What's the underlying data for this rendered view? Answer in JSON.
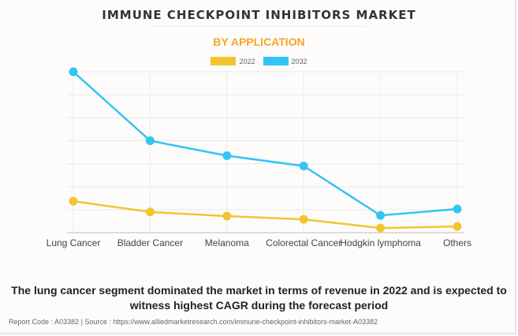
{
  "header": {
    "title": "IMMUNE CHECKPOINT INHIBITORS MARKET",
    "subtitle": "BY APPLICATION"
  },
  "chart_data": {
    "type": "line",
    "title": "IMMUNE CHECKPOINT INHIBITORS MARKET",
    "subtitle": "BY APPLICATION",
    "xlabel": "",
    "ylabel": "",
    "categories": [
      "Lung Cancer",
      "Bladder Cancer",
      "Melanoma",
      "Colorectal Cancer",
      "Hodgkin lymphoma",
      "Others"
    ],
    "series": [
      {
        "name": "2022",
        "color": "#f4c430",
        "values": [
          1.37,
          0.9,
          0.72,
          0.58,
          0.2,
          0.27
        ]
      },
      {
        "name": "2032",
        "color": "#33c4f5",
        "values": [
          7.0,
          4.0,
          3.35,
          2.9,
          0.75,
          1.03
        ]
      }
    ],
    "ylim": [
      0,
      7
    ],
    "y_unit": "relative (no y-axis tick labels shown)",
    "grid": true,
    "legend_position": "top-center"
  },
  "caption": "The lung cancer segment dominated the market in terms of revenue in 2022 and is expected to witness highest CAGR during the forecast period",
  "source": "Report Code : A03382  |  Source : https://www.alliedmarketresearch.com/immune-checkpoint-inhibitors-market-A03382"
}
